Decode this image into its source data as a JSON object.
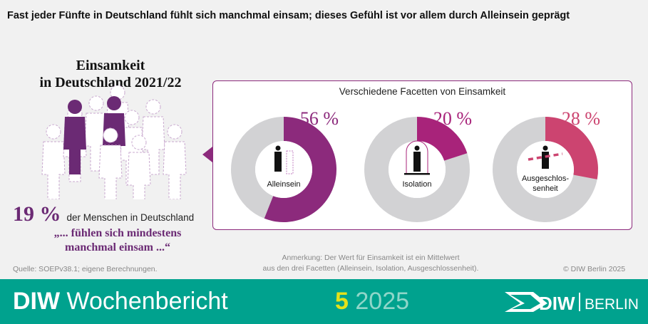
{
  "headline": "Fast jeder Fünfte in Deutschland fühlt sich manchmal einsam; dieses Gefühl ist vor allem durch Alleinsein geprägt",
  "left": {
    "title_line1": "Einsamkeit",
    "title_line2": "in Deutschland 2021/22",
    "share_value": "19 %",
    "share_text": "der Menschen in Deutschland",
    "quote_line1": "„... fühlen sich mindestens",
    "quote_line2": "manchmal einsam ...“",
    "people_highlighted": 2,
    "people_total": 11
  },
  "source": "Quelle: SOEPv38.1; eigene Berechnungen.",
  "note_line1": "Anmerkung: Der Wert für Einsamkeit ist ein Mittelwert",
  "note_line2": "aus den drei Facetten (Alleinsein, Isolation, Ausgeschlossenheit).",
  "copyright": "© DIW Berlin 2025",
  "footer": {
    "brand_bold": "DIW",
    "brand": "Wochenbericht",
    "issue_no": "5",
    "issue_year": "2025",
    "logo_text": "DIW",
    "logo_text2": "BERLIN"
  },
  "chart_data": {
    "type": "pie",
    "title": "Verschiedene Facetten von Einsamkeit",
    "categories": [
      "Alleinsein",
      "Isolation",
      "Ausgeschlossenheit"
    ],
    "center_labels": [
      "Alleinsein",
      "Isolation",
      "Ausgeschlos-\nsenheit"
    ],
    "values": [
      56,
      20,
      28
    ],
    "value_labels": [
      "56 %",
      "20 %",
      "28 %"
    ],
    "colors": [
      "#8c2a7c",
      "#a8237a",
      "#cc4470"
    ],
    "rest_color": "#d2d2d4",
    "donut": true
  }
}
